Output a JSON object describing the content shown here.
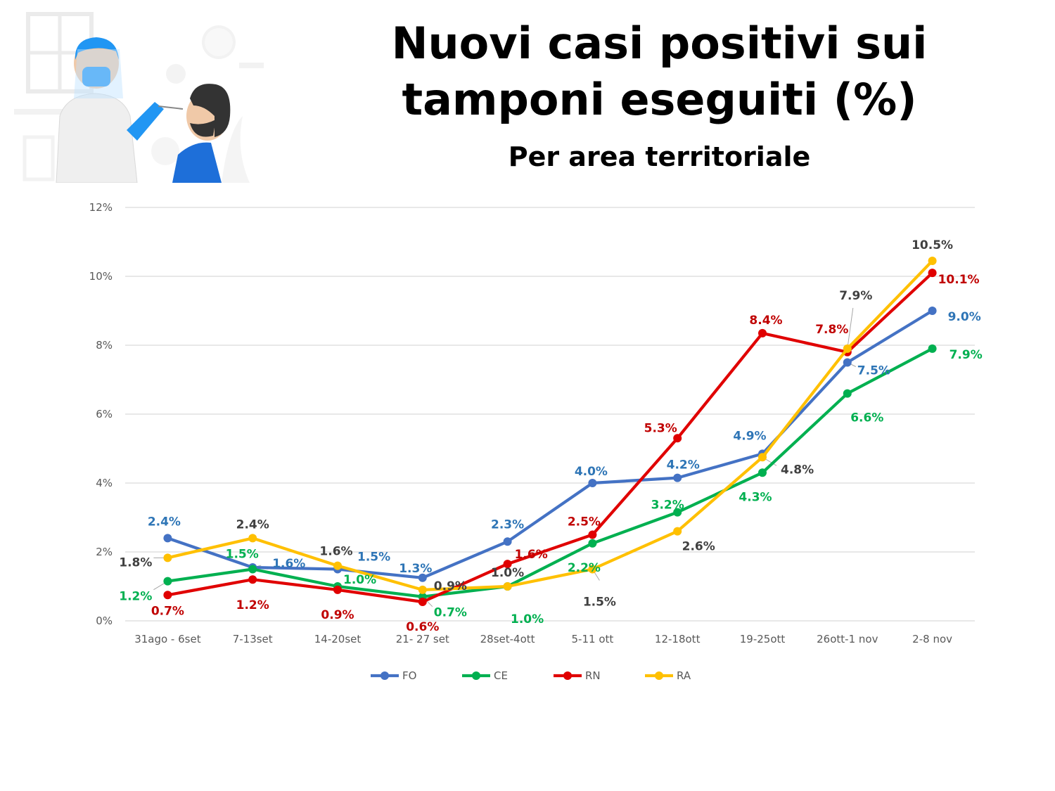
{
  "title": "Nuovi casi positivi sui tamponi eseguiti (%)",
  "subtitle": "Per area territoriale",
  "illustration": {
    "icon": "swab-test-illustration-icon"
  },
  "chart_data": {
    "type": "line",
    "title": "Nuovi casi positivi sui tamponi eseguiti (%)",
    "subtitle": "Per area territoriale",
    "xlabel": "",
    "ylabel": "",
    "ylim": [
      0,
      12
    ],
    "yticks": [
      0,
      2,
      4,
      6,
      8,
      10,
      12
    ],
    "ytick_labels": [
      "0%",
      "2%",
      "4%",
      "6%",
      "8%",
      "10%",
      "12%"
    ],
    "grid": true,
    "legend_position": "bottom",
    "categories": [
      "31ago - 6set",
      "7-13set",
      "14-20set",
      "21- 27 set",
      "28set-4ott",
      "5-11 ott",
      "12-18ott",
      "19-25ott",
      "26ott-1 nov",
      "2-8 nov"
    ],
    "series": [
      {
        "name": "FO",
        "color": "#4472C4",
        "label_color": "#2E75B6",
        "values": [
          2.4,
          1.55,
          1.5,
          1.25,
          2.3,
          4.0,
          4.15,
          4.85,
          7.5,
          9.0
        ],
        "labels": [
          "2.4%",
          "1.6%",
          "1.5%",
          "1.3%",
          "2.3%",
          "4.0%",
          "4.2%",
          "4.9%",
          "7.5%",
          "9.0%"
        ]
      },
      {
        "name": "CE",
        "color": "#00B050",
        "label_color": "#00B050",
        "values": [
          1.15,
          1.5,
          1.0,
          0.7,
          1.0,
          2.25,
          3.15,
          4.3,
          6.6,
          7.9
        ],
        "labels": [
          "1.2%",
          "1.5%",
          "1.0%",
          "0.7%",
          "1.0%",
          "2.2%",
          "3.2%",
          "4.3%",
          "6.6%",
          "7.9%"
        ]
      },
      {
        "name": "RN",
        "color": "#E00000",
        "label_color": "#C00000",
        "values": [
          0.75,
          1.2,
          0.9,
          0.55,
          1.65,
          2.5,
          5.3,
          8.35,
          7.8,
          10.1
        ],
        "labels": [
          "0.7%",
          "1.2%",
          "0.9%",
          "0.6%",
          "1.6%",
          "2.5%",
          "5.3%",
          "8.4%",
          "7.8%",
          "10.1%"
        ]
      },
      {
        "name": "RA",
        "color": "#FFC000",
        "label_color": "#404040",
        "values": [
          1.83,
          2.4,
          1.6,
          0.9,
          1.0,
          1.5,
          2.6,
          4.75,
          7.9,
          10.45
        ],
        "labels": [
          "1.8%",
          "2.4%",
          "1.6%",
          "0.9%",
          "1.0%",
          "1.5%",
          "2.6%",
          "4.8%",
          "7.9%",
          "10.5%"
        ]
      }
    ]
  }
}
